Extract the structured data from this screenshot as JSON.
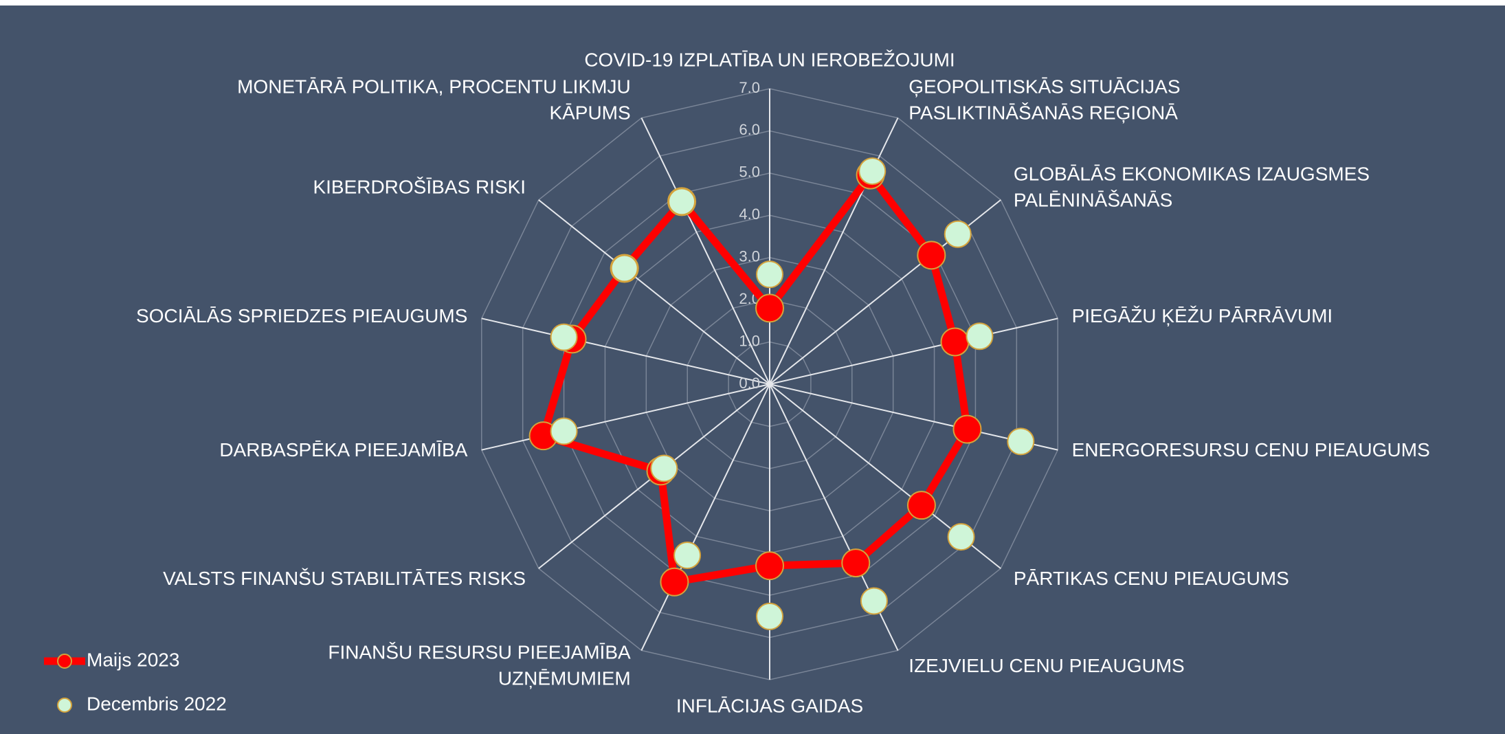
{
  "chart_data": {
    "type": "radar",
    "categories": [
      "COVID-19 IZPLATĪBA UN IEROBEŽOJUMI",
      "ĢEOPOLITISKĀS SITUĀCIJAS\nPASLIKTINĀŠANĀS REĢIONĀ",
      "GLOBĀLĀS EKONOMIKAS IZAUGSMES\nPALĒNINĀŠANĀS",
      "PIEGĀŽU ĶĒŽU PĀRRĀVUMI",
      "ENERGORESURSU CENU PIEAUGUMS",
      "PĀRTIKAS CENU PIEAUGUMS",
      "IZEJVIELU CENU PIEAUGUMS",
      "INFLĀCIJAS GAIDAS",
      "FINANŠU RESURSU PIEEJAMĪBA\nUZŅĒMUMIEM",
      "VALSTS FINANŠU STABILITĀTES RISKS",
      "DARBASPĒKA PIEEJAMĪBA",
      "SOCIĀLĀS SPRIEDZES PIEAUGUMS",
      "KIBERDROŠĪBAS RISKI",
      "MONETĀRĀ POLITIKA, PROCENTU LIKMJU\nKĀPUMS"
    ],
    "series": [
      {
        "name": "Maijs 2023",
        "color": "#ff0000",
        "values": [
          1.8,
          5.5,
          4.9,
          4.5,
          4.8,
          4.6,
          4.7,
          4.3,
          5.2,
          3.3,
          5.5,
          4.8,
          4.4,
          4.8
        ]
      },
      {
        "name": "Decembris 2022",
        "color": "#cff5d8",
        "values": [
          2.6,
          5.6,
          5.7,
          5.1,
          6.1,
          5.8,
          5.7,
          5.5,
          4.5,
          3.2,
          5.0,
          5.0,
          4.4,
          4.8
        ]
      }
    ],
    "rlim": [
      0,
      7
    ],
    "rticks": [
      {
        "value": 0,
        "label": "0.0"
      },
      {
        "value": 1,
        "label": "1.0"
      },
      {
        "value": 2,
        "label": "2.0"
      },
      {
        "value": 3,
        "label": "3.0"
      },
      {
        "value": 4,
        "label": "4.0"
      },
      {
        "value": 5,
        "label": "5.0"
      },
      {
        "value": 6,
        "label": "6.0"
      },
      {
        "value": 7,
        "label": "7.0"
      }
    ],
    "grid": true,
    "legend": "bottom-left"
  }
}
